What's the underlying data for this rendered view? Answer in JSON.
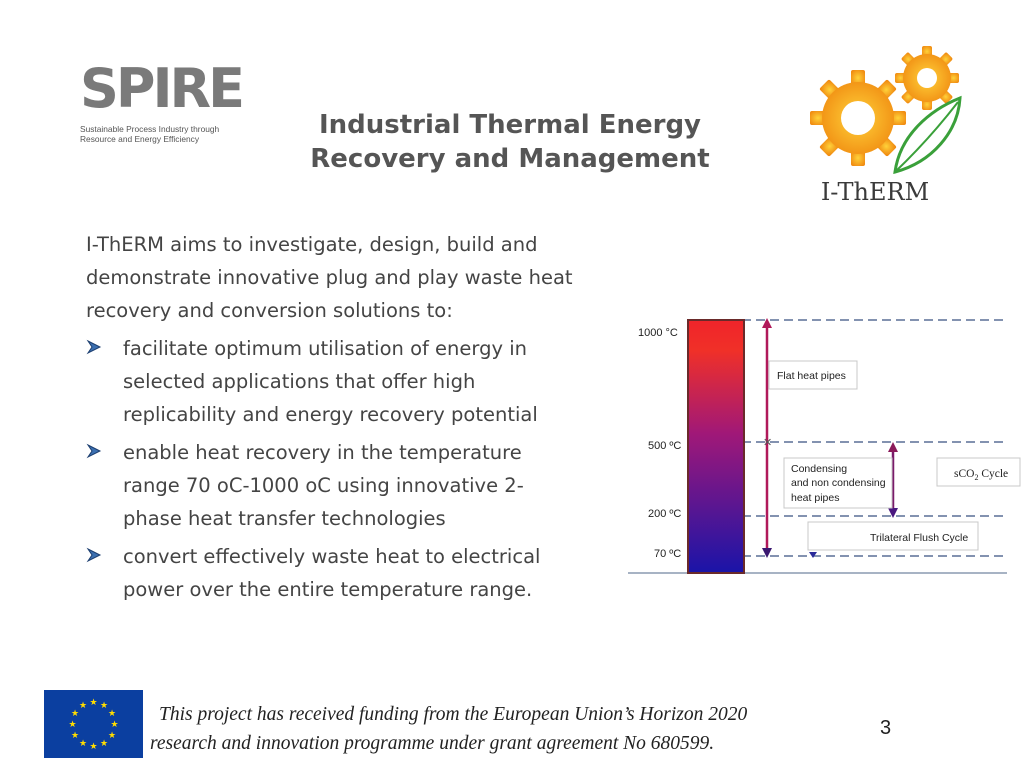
{
  "logos": {
    "spire": {
      "letters": "SPIRE",
      "tagline_line1": "Sustainable Process Industry through",
      "tagline_line2": "Resource and Energy Efficiency"
    },
    "itherm": {
      "name": "I-ThERM"
    }
  },
  "title": {
    "line1": "Industrial Thermal Energy",
    "line2": "Recovery and Management"
  },
  "intro": {
    "line1": "I-ThERM aims to investigate, design, build and",
    "line2": "demonstrate innovative plug and play waste heat",
    "line3": "recovery and conversion solutions to:"
  },
  "bullets": [
    {
      "lines": [
        "facilitate optimum utilisation of energy in",
        "selected applications that offer high",
        "replicability and energy recovery potential"
      ]
    },
    {
      "lines": [
        "enable heat recovery in the temperature",
        "range 70 oC-1000 oC using innovative 2-",
        "phase heat transfer technologies"
      ]
    },
    {
      "lines": [
        "convert effectively waste heat to electrical",
        "power over the entire temperature range."
      ]
    }
  ],
  "diagram": {
    "temps": {
      "t1000": "1000 °C",
      "t500": "500 ºC",
      "t200": "200 ºC",
      "t70": "70 ºC"
    },
    "boxes": {
      "flat": "Flat heat pipes",
      "cond1": "Condensing",
      "cond2": "and non condensing",
      "cond3": "heat pipes",
      "sco2": "sCO",
      "sco2_sub": "2",
      "sco2_rest": " Cycle",
      "trilateral": "Trilateral Flush Cycle"
    }
  },
  "footer": {
    "funding_line1": "This project has received funding from the European Union’s Horizon 2020",
    "funding_line2": "research and innovation programme under grant agreement No 680599.",
    "page_number": "3"
  },
  "colors": {
    "title": "#555555",
    "text": "#444444",
    "eu_blue": "#0b3fa0",
    "eu_star": "#ffdd00",
    "bar_top": "#f0242a",
    "bar_bottom": "#1a14a8"
  }
}
